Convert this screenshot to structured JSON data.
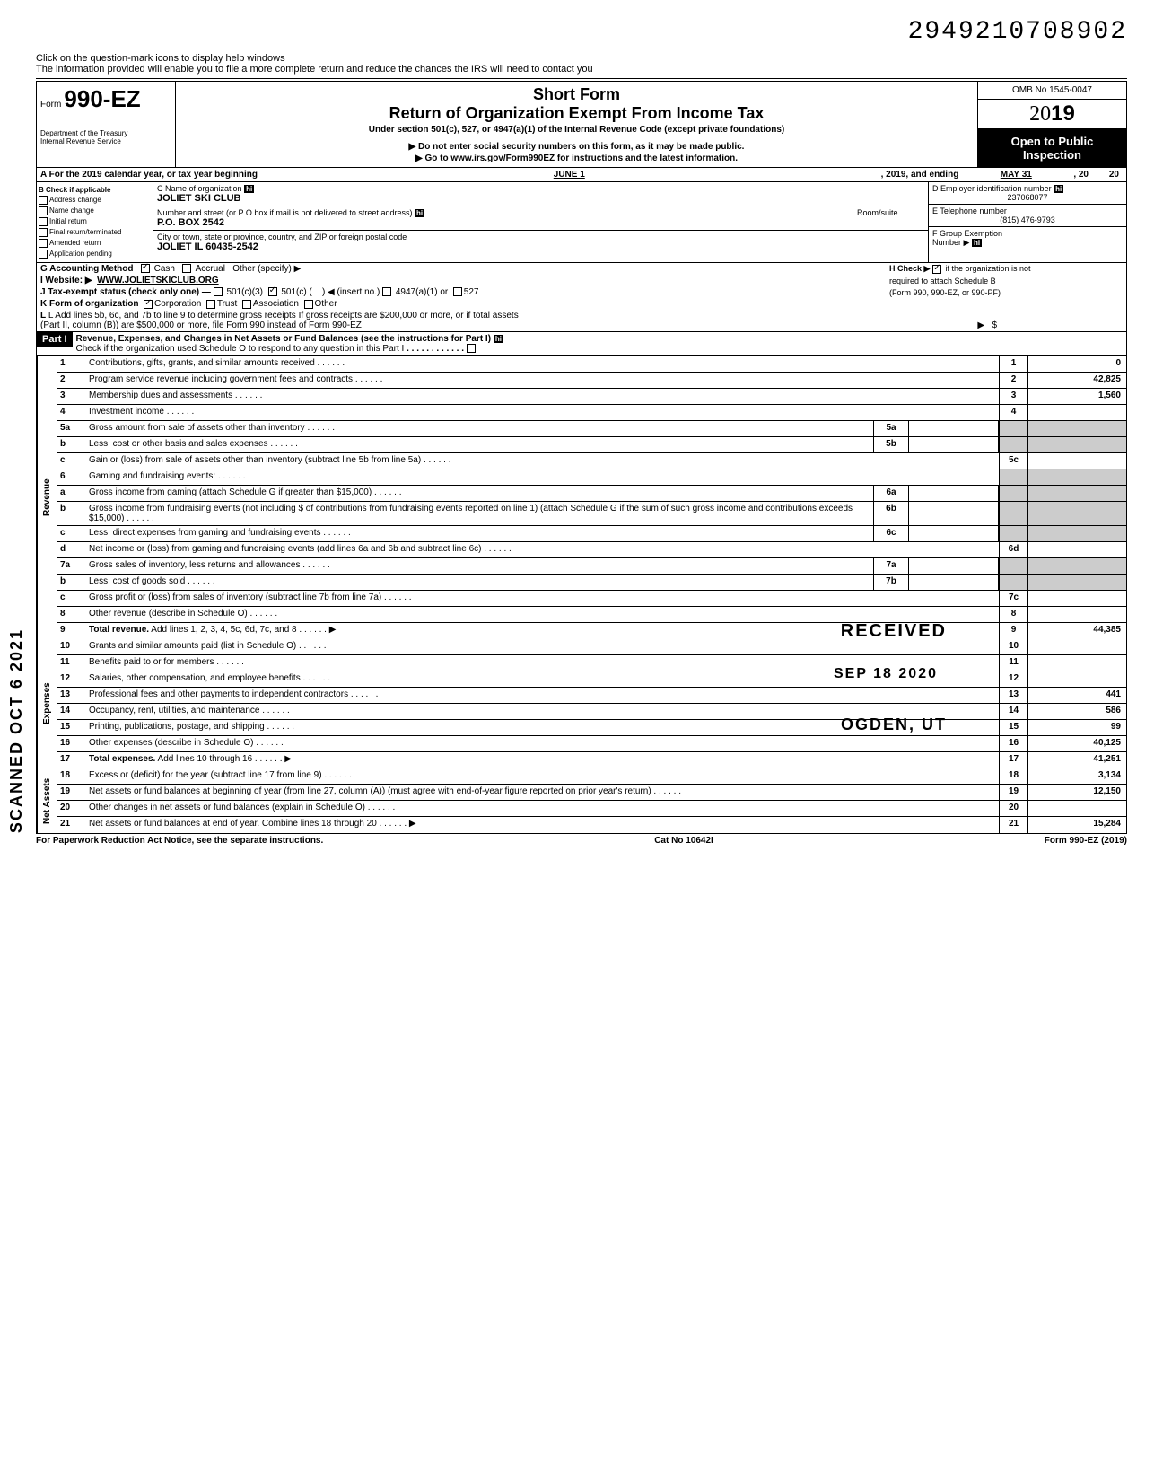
{
  "doc_number": "2949210708902",
  "help_line1": "Click on the question-mark icons to display help windows",
  "help_line2": "The information provided will enable you to file a more complete return and reduce the chances the IRS will need to contact you",
  "form": {
    "prefix": "Form",
    "number": "990-EZ",
    "dept1": "Department of the Treasury",
    "dept2": "Internal Revenue Service"
  },
  "title": {
    "short": "Short Form",
    "main": "Return of Organization Exempt From Income Tax",
    "sub": "Under section 501(c), 527, or 4947(a)(1) of the Internal Revenue Code (except private foundations)",
    "warn": "▶ Do not enter social security numbers on this form, as it may be made public.",
    "goto": "▶ Go to www.irs.gov/Form990EZ for instructions and the latest information."
  },
  "rightbox": {
    "omb": "OMB No 1545-0047",
    "year": "2019",
    "open1": "Open to Public",
    "open2": "Inspection"
  },
  "lineA": {
    "label": "A For the 2019 calendar year, or tax year beginning",
    "begin": "JUNE 1",
    "mid": ", 2019, and ending",
    "end": "MAY 31",
    "yr_lbl": ", 20",
    "yr": "20"
  },
  "colB": {
    "header": "B Check if applicable",
    "items": [
      "Address change",
      "Name change",
      "Initial return",
      "Final return/terminated",
      "Amended return",
      "Application pending"
    ]
  },
  "colC": {
    "name_label": "C Name of organization",
    "name": "JOLIET SKI CLUB",
    "addr_label": "Number and street (or P O  box if mail is not delivered to street address)",
    "room_label": "Room/suite",
    "addr": "P.O. BOX 2542",
    "city_label": "City or town, state or province, country, and ZIP or foreign postal code",
    "city": "JOLIET IL 60435-2542"
  },
  "colD": {
    "ein_label": "D Employer identification number",
    "ein": "237068077",
    "tel_label": "E Telephone number",
    "tel": "(815) 476-9793",
    "grp_label": "F Group Exemption",
    "grp_label2": "Number ▶"
  },
  "secG": {
    "g": "G Accounting Method",
    "cash": "Cash",
    "accrual": "Accrual",
    "other": "Other (specify) ▶",
    "i": "I  Website: ▶",
    "website": "WWW.JOLIETSKICLUB.ORG",
    "j": "J Tax-exempt status (check only one) —",
    "j1": "501(c)(3)",
    "j2": "501(c) (",
    "j3": ") ◀ (insert no.)",
    "j4": "4947(a)(1) or",
    "j5": "527",
    "k": "K Form of organization",
    "k1": "Corporation",
    "k2": "Trust",
    "k3": "Association",
    "k4": "Other",
    "h1": "H Check ▶",
    "h2": "if the organization is not",
    "h3": "required to attach Schedule B",
    "h4": "(Form 990, 990-EZ, or 990-PF)",
    "l": "L Add lines 5b, 6c, and 7b to line 9 to determine gross receipts  If gross receipts are $200,000 or more, or if total assets",
    "l2": "(Part II, column (B)) are $500,000 or more, file Form 990 instead of Form 990-EZ",
    "l_arrow": "▶",
    "l_dollar": "$"
  },
  "part1": {
    "label": "Part I",
    "title": "Revenue, Expenses, and Changes in Net Assets or Fund Balances (see the instructions for Part I)",
    "check": "Check if the organization used Schedule O to respond to any question in this Part I"
  },
  "sections": {
    "revenue": "Revenue",
    "expenses": "Expenses",
    "netassets": "Net Assets"
  },
  "lines": [
    {
      "n": "1",
      "desc": "Contributions, gifts, grants, and similar amounts received",
      "box": "1",
      "amt": "0"
    },
    {
      "n": "2",
      "desc": "Program service revenue including government fees and contracts",
      "box": "2",
      "amt": "42,825"
    },
    {
      "n": "3",
      "desc": "Membership dues and assessments",
      "box": "3",
      "amt": "1,560"
    },
    {
      "n": "4",
      "desc": "Investment income",
      "box": "4",
      "amt": ""
    },
    {
      "n": "5a",
      "desc": "Gross amount from sale of assets other than inventory",
      "mid": "5a"
    },
    {
      "n": "b",
      "desc": "Less: cost or other basis and sales expenses",
      "mid": "5b"
    },
    {
      "n": "c",
      "desc": "Gain or (loss) from sale of assets other than inventory (subtract line 5b from line 5a)",
      "box": "5c",
      "amt": ""
    },
    {
      "n": "6",
      "desc": "Gaming and fundraising events:"
    },
    {
      "n": "a",
      "desc": "Gross income from gaming (attach Schedule G if greater than $15,000)",
      "mid": "6a"
    },
    {
      "n": "b",
      "desc": "Gross income from fundraising events (not including  $                of contributions from fundraising events reported on line 1) (attach Schedule G if the sum of such gross income and contributions exceeds $15,000)",
      "mid": "6b"
    },
    {
      "n": "c",
      "desc": "Less: direct expenses from gaming and fundraising events",
      "mid": "6c"
    },
    {
      "n": "d",
      "desc": "Net income or (loss) from gaming and fundraising events (add lines 6a and 6b and subtract line 6c)",
      "box": "6d",
      "amt": ""
    },
    {
      "n": "7a",
      "desc": "Gross sales of inventory, less returns and allowances",
      "mid": "7a"
    },
    {
      "n": "b",
      "desc": "Less: cost of goods sold",
      "mid": "7b"
    },
    {
      "n": "c",
      "desc": "Gross profit or (loss) from sales of inventory (subtract line 7b from line 7a)",
      "box": "7c",
      "amt": ""
    },
    {
      "n": "8",
      "desc": "Other revenue (describe in Schedule O)",
      "box": "8",
      "amt": ""
    },
    {
      "n": "9",
      "desc": "Total revenue. Add lines 1, 2, 3, 4, 5c, 6d, 7c, and 8",
      "box": "9",
      "amt": "44,385",
      "bold": true,
      "arrow": true
    }
  ],
  "exp_lines": [
    {
      "n": "10",
      "desc": "Grants and similar amounts paid (list in Schedule O)",
      "box": "10",
      "amt": ""
    },
    {
      "n": "11",
      "desc": "Benefits paid to or for members",
      "box": "11",
      "amt": ""
    },
    {
      "n": "12",
      "desc": "Salaries, other compensation, and employee benefits",
      "box": "12",
      "amt": ""
    },
    {
      "n": "13",
      "desc": "Professional fees and other payments to independent contractors",
      "box": "13",
      "amt": "441"
    },
    {
      "n": "14",
      "desc": "Occupancy, rent, utilities, and maintenance",
      "box": "14",
      "amt": "586"
    },
    {
      "n": "15",
      "desc": "Printing, publications, postage, and shipping",
      "box": "15",
      "amt": "99"
    },
    {
      "n": "16",
      "desc": "Other expenses (describe in Schedule O)",
      "box": "16",
      "amt": "40,125"
    },
    {
      "n": "17",
      "desc": "Total expenses. Add lines 10 through 16",
      "box": "17",
      "amt": "41,251",
      "bold": true,
      "arrow": true
    }
  ],
  "na_lines": [
    {
      "n": "18",
      "desc": "Excess or (deficit) for the year (subtract line 17 from line 9)",
      "box": "18",
      "amt": "3,134"
    },
    {
      "n": "19",
      "desc": "Net assets or fund balances at beginning of year (from line 27, column (A)) (must agree with end-of-year figure reported on prior year's return)",
      "box": "19",
      "amt": "12,150"
    },
    {
      "n": "20",
      "desc": "Other changes in net assets or fund balances (explain in Schedule O)",
      "box": "20",
      "amt": ""
    },
    {
      "n": "21",
      "desc": "Net assets or fund balances at end of year. Combine lines 18 through 20",
      "box": "21",
      "amt": "15,284",
      "arrow": true
    }
  ],
  "stamps": {
    "received": "RECEIVED",
    "date": "SEP 18 2020",
    "ogden": "OGDEN, UT",
    "side": "SCANNED OCT  6 2021"
  },
  "footer": {
    "left": "For Paperwork Reduction Act Notice, see the separate instructions.",
    "mid": "Cat No 10642I",
    "right": "Form 990-EZ (2019)"
  }
}
